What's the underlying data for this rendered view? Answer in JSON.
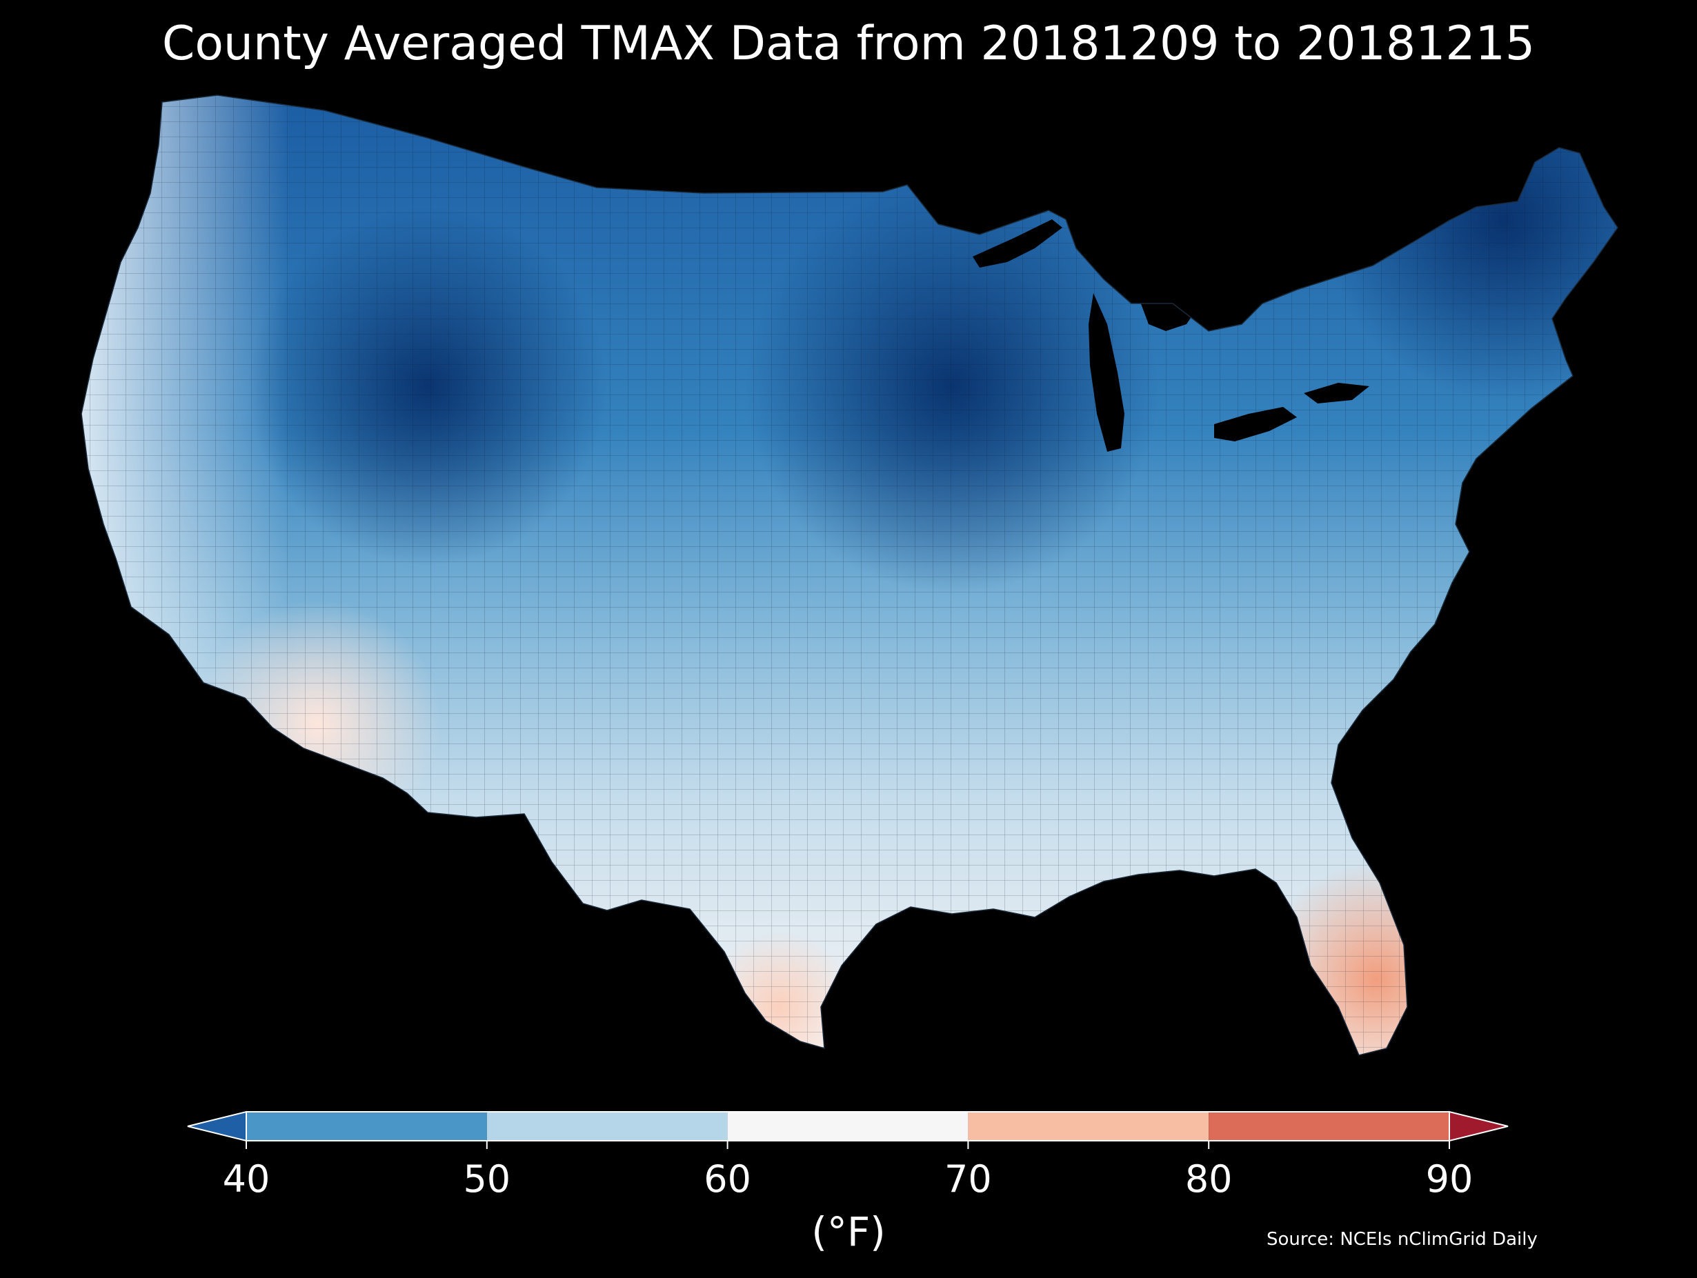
{
  "title": "County Averaged TMAX Data from 20181209 to 20181215",
  "colorbar": {
    "unit_label": "(°F)",
    "ticks": [
      "40",
      "50",
      "60",
      "70",
      "80",
      "90"
    ],
    "bins": [
      {
        "from": 40,
        "to": 50,
        "color": "#4a96c6"
      },
      {
        "from": 50,
        "to": 60,
        "color": "#b5d6e9"
      },
      {
        "from": 60,
        "to": 70,
        "color": "#f6f6f6"
      },
      {
        "from": 70,
        "to": 80,
        "color": "#f7bea4"
      },
      {
        "from": 80,
        "to": 90,
        "color": "#dc6b57"
      }
    ],
    "under_color": "#1f5fa6",
    "over_color": "#9e1a2c"
  },
  "source": "Source: NCEIs nClimGrid Daily",
  "background_color": "#000000",
  "chart_data": {
    "type": "choropleth",
    "region": "Contiguous United States counties",
    "variable": "TMAX",
    "units": "°F",
    "date_range": [
      "20181209",
      "20181215"
    ],
    "color_range": [
      40,
      90
    ],
    "colormap": "RdBu_r",
    "extend": "both"
  }
}
